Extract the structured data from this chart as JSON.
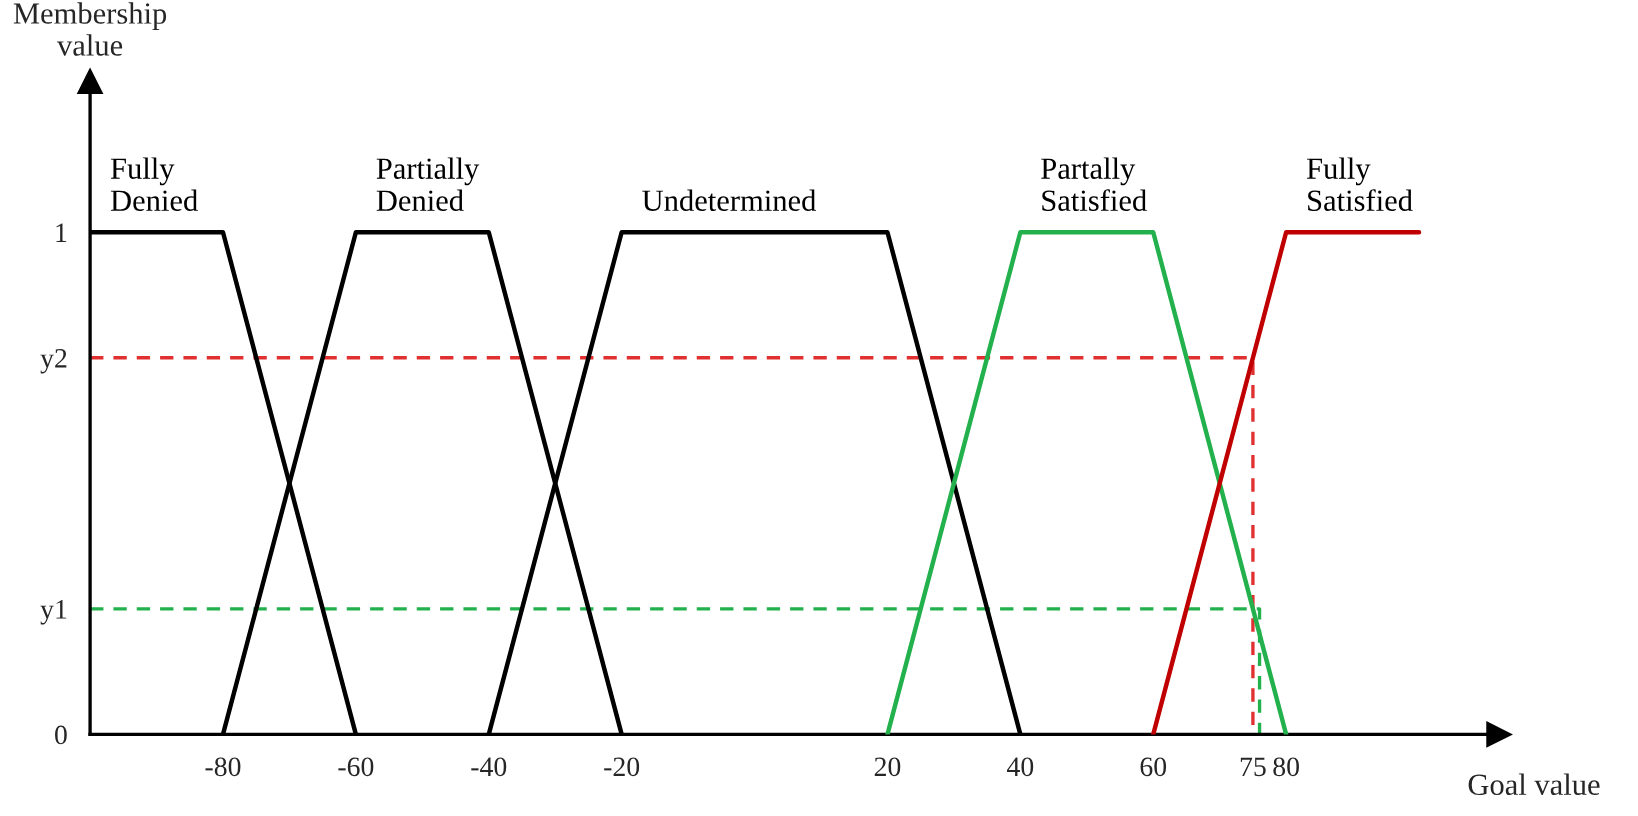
{
  "chart_data": {
    "type": "line",
    "xlabel": "Goal value",
    "ylabel": "Membership\nvalue",
    "xlim": [
      -100,
      112
    ],
    "xticks": [
      -80,
      -60,
      -40,
      -20,
      20,
      40,
      60,
      75,
      80
    ],
    "ylim": [
      0,
      1.3
    ],
    "yticks": [
      0,
      {
        "value": 0.25,
        "label": "y1"
      },
      {
        "value": 0.75,
        "label": "y2"
      },
      1
    ],
    "grid": false,
    "legend": false,
    "marker": "none",
    "series": [
      {
        "name": "Fully\nDenied",
        "color": "#000000",
        "x": [
          -100,
          -80,
          -60
        ],
        "values": [
          1,
          1,
          0
        ]
      },
      {
        "name": "Partially\nDenied",
        "color": "#000000",
        "x": [
          -80,
          -60,
          -40,
          -20
        ],
        "values": [
          0,
          1,
          1,
          0
        ]
      },
      {
        "name": "Undetermined",
        "color": "#000000",
        "x": [
          -40,
          -20,
          20,
          40
        ],
        "values": [
          0,
          1,
          1,
          0
        ]
      },
      {
        "name": "Partally\nSatisfied",
        "color": "#22b14c",
        "x": [
          20,
          40,
          60,
          80
        ],
        "values": [
          0,
          1,
          1,
          0
        ]
      },
      {
        "name": "Fully\nSatisfied",
        "color": "#c00000",
        "x": [
          60,
          80,
          100
        ],
        "values": [
          0,
          1,
          1
        ]
      },
      {
        "color": "#e03030",
        "line_style": "dashed",
        "x": [
          -100,
          75,
          75
        ],
        "values": [
          0.75,
          0.75,
          0
        ]
      },
      {
        "color": "#22b14c",
        "line_style": "dashed",
        "x": [
          -100,
          76,
          76
        ],
        "values": [
          0.25,
          0.25,
          0
        ]
      }
    ]
  }
}
